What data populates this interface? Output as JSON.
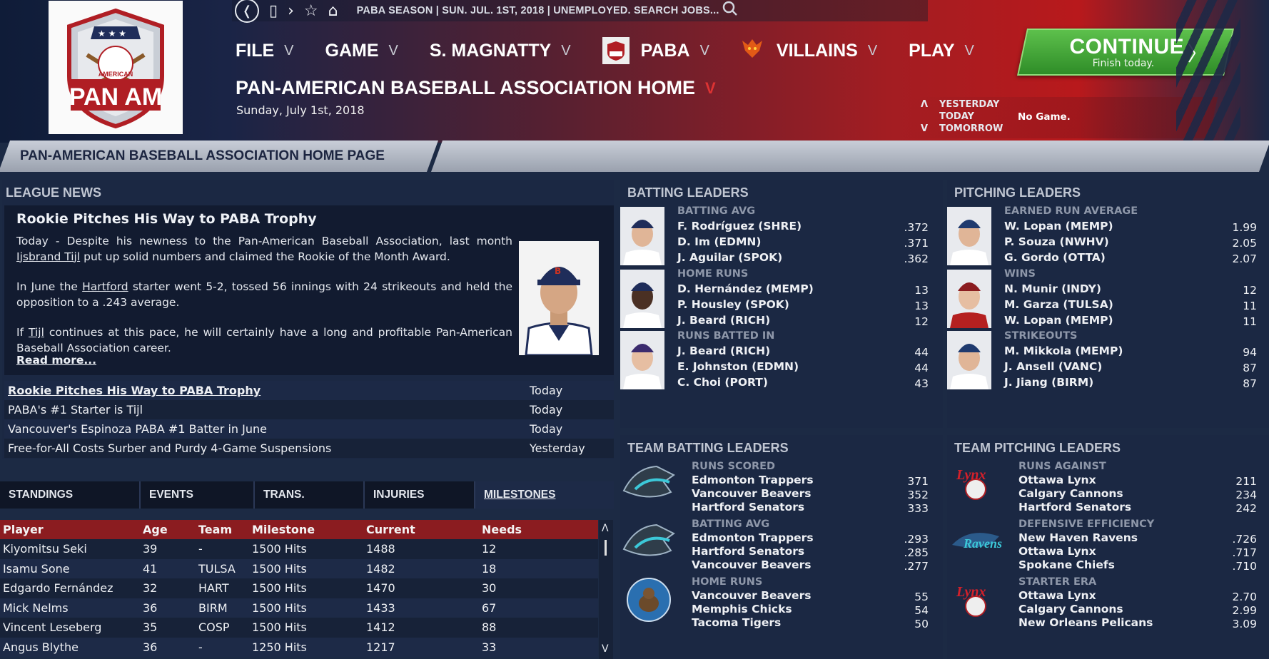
{
  "topbar": {
    "season_text": "PABA SEASON  |  SUN. JUL. 1ST, 2018  |  UNEMPLOYED. SEARCH JOBS..."
  },
  "logo": {
    "text": "PAN AM",
    "subtext": "AMERICAN"
  },
  "menu": [
    {
      "label": "FILE"
    },
    {
      "label": "GAME"
    },
    {
      "label": "S. MAGNATTY"
    },
    {
      "label": "PABA"
    },
    {
      "label": "VILLAINS"
    },
    {
      "label": "PLAY"
    }
  ],
  "continue_button": {
    "label": "CONTINUE",
    "sublabel": "Finish today."
  },
  "page": {
    "title": "PAN-AMERICAN BASEBALL ASSOCIATION HOME",
    "date": "Sunday, July 1st, 2018"
  },
  "day_nav": {
    "yesterday": "YESTERDAY",
    "today": "TODAY",
    "tomorrow": "TOMORROW",
    "status": "No Game."
  },
  "breadcrumb": "PAN-AMERICAN BASEBALL ASSOCIATION HOME PAGE",
  "league_news": {
    "title": "LEAGUE NEWS",
    "feature": {
      "headline": "Rookie Pitches His Way to PABA Trophy",
      "p1_a": "Today - Despite his newness to the Pan-American Baseball Association, last month ",
      "p1_link": "Ijsbrand Tijl",
      "p1_b": " put up solid numbers and claimed the Rookie of the Month Award.",
      "p2_a": "In June the ",
      "p2_link": "Hartford",
      "p2_b": " starter went 5-2, tossed 56 innings with 24 strikeouts and held the opposition to a .243 average.",
      "p3_a": "If ",
      "p3_link": "Tijl",
      "p3_b": " continues at this pace, he will certainly have a long and profitable Pan-American Baseball Association career.",
      "read_more": "Read more..."
    },
    "items": [
      {
        "headline": "Rookie Pitches His Way to PABA Trophy",
        "when": "Today"
      },
      {
        "headline": "PABA's #1 Starter is Tijl",
        "when": "Today"
      },
      {
        "headline": "Vancouver's Espinoza PABA #1 Batter in June",
        "when": "Today"
      },
      {
        "headline": "Free-for-All Costs Surber and Purdy 4-Game Suspensions",
        "when": "Yesterday"
      }
    ]
  },
  "tabs": [
    {
      "label": "STANDINGS"
    },
    {
      "label": "EVENTS"
    },
    {
      "label": "TRANS."
    },
    {
      "label": "INJURIES"
    },
    {
      "label": "MILESTONES"
    }
  ],
  "milestones": {
    "headers": [
      "Player",
      "Age",
      "Team",
      "Milestone",
      "Current",
      "Needs"
    ],
    "rows": [
      [
        "Kiyomitsu Seki",
        "39",
        "-",
        "1500 Hits",
        "1488",
        "12"
      ],
      [
        "Isamu Sone",
        "41",
        "TULSA",
        "1500 Hits",
        "1482",
        "18"
      ],
      [
        "Edgardo Fernández",
        "32",
        "HART",
        "1500 Hits",
        "1470",
        "30"
      ],
      [
        "Mick Nelms",
        "36",
        "BIRM",
        "1500 Hits",
        "1433",
        "67"
      ],
      [
        "Vincent Leseberg",
        "35",
        "COSP",
        "1500 Hits",
        "1412",
        "88"
      ],
      [
        "Angus Blythe",
        "36",
        "-",
        "1250 Hits",
        "1217",
        "33"
      ]
    ]
  },
  "batting_leaders": {
    "title": "BATTING LEADERS",
    "groups": [
      {
        "category": "BATTING AVG",
        "rows": [
          [
            "F. Rodríguez (SHRE)",
            ".372"
          ],
          [
            "D. Im (EDMN)",
            ".371"
          ],
          [
            "J. Aguilar (SPOK)",
            ".362"
          ]
        ]
      },
      {
        "category": "HOME RUNS",
        "rows": [
          [
            "D. Hernández (MEMP)",
            "13"
          ],
          [
            "P. Housley (SPOK)",
            "13"
          ],
          [
            "J. Beard (RICH)",
            "12"
          ]
        ]
      },
      {
        "category": "RUNS BATTED IN",
        "rows": [
          [
            "J. Beard (RICH)",
            "44"
          ],
          [
            "E. Johnston (EDMN)",
            "44"
          ],
          [
            "C. Choi (PORT)",
            "43"
          ]
        ]
      }
    ]
  },
  "pitching_leaders": {
    "title": "PITCHING LEADERS",
    "groups": [
      {
        "category": "EARNED RUN AVERAGE",
        "rows": [
          [
            "W. Lopan (MEMP)",
            "1.99"
          ],
          [
            "P. Souza (NWHV)",
            "2.05"
          ],
          [
            "G. Gordo (OTTA)",
            "2.07"
          ]
        ]
      },
      {
        "category": "WINS",
        "rows": [
          [
            "N. Munir (INDY)",
            "12"
          ],
          [
            "M. Garza (TULSA)",
            "11"
          ],
          [
            "W. Lopan (MEMP)",
            "11"
          ]
        ]
      },
      {
        "category": "STRIKEOUTS",
        "rows": [
          [
            "M. Mikkola (MEMP)",
            "94"
          ],
          [
            "J. Ansell (VANC)",
            "87"
          ],
          [
            "J. Jiang (BIRM)",
            "87"
          ]
        ]
      }
    ]
  },
  "team_batting_leaders": {
    "title": "TEAM BATTING LEADERS",
    "groups": [
      {
        "category": "RUNS SCORED",
        "rows": [
          [
            "Edmonton Trappers",
            "371"
          ],
          [
            "Vancouver Beavers",
            "352"
          ],
          [
            "Hartford Senators",
            "333"
          ]
        ]
      },
      {
        "category": "BATTING AVG",
        "rows": [
          [
            "Edmonton Trappers",
            ".293"
          ],
          [
            "Hartford Senators",
            ".285"
          ],
          [
            "Vancouver Beavers",
            ".277"
          ]
        ]
      },
      {
        "category": "HOME RUNS",
        "rows": [
          [
            "Vancouver Beavers",
            "55"
          ],
          [
            "Memphis Chicks",
            "54"
          ],
          [
            "Tacoma Tigers",
            "50"
          ]
        ]
      }
    ]
  },
  "team_pitching_leaders": {
    "title": "TEAM PITCHING LEADERS",
    "groups": [
      {
        "category": "RUNS AGAINST",
        "rows": [
          [
            "Ottawa Lynx",
            "211"
          ],
          [
            "Calgary Cannons",
            "234"
          ],
          [
            "Hartford Senators",
            "242"
          ]
        ]
      },
      {
        "category": "DEFENSIVE EFFICIENCY",
        "rows": [
          [
            "New Haven Ravens",
            ".726"
          ],
          [
            "Ottawa Lynx",
            ".717"
          ],
          [
            "Spokane Chiefs",
            ".710"
          ]
        ]
      },
      {
        "category": "STARTER ERA",
        "rows": [
          [
            "Ottawa Lynx",
            "2.70"
          ],
          [
            "Calgary Cannons",
            "2.99"
          ],
          [
            "New Orleans Pelicans",
            "3.09"
          ]
        ]
      }
    ]
  },
  "colors": {
    "accent_red": "#b8191c",
    "continue_green": "#3fa233",
    "table_header": "#8b1c20",
    "panel": "#1b2843"
  }
}
